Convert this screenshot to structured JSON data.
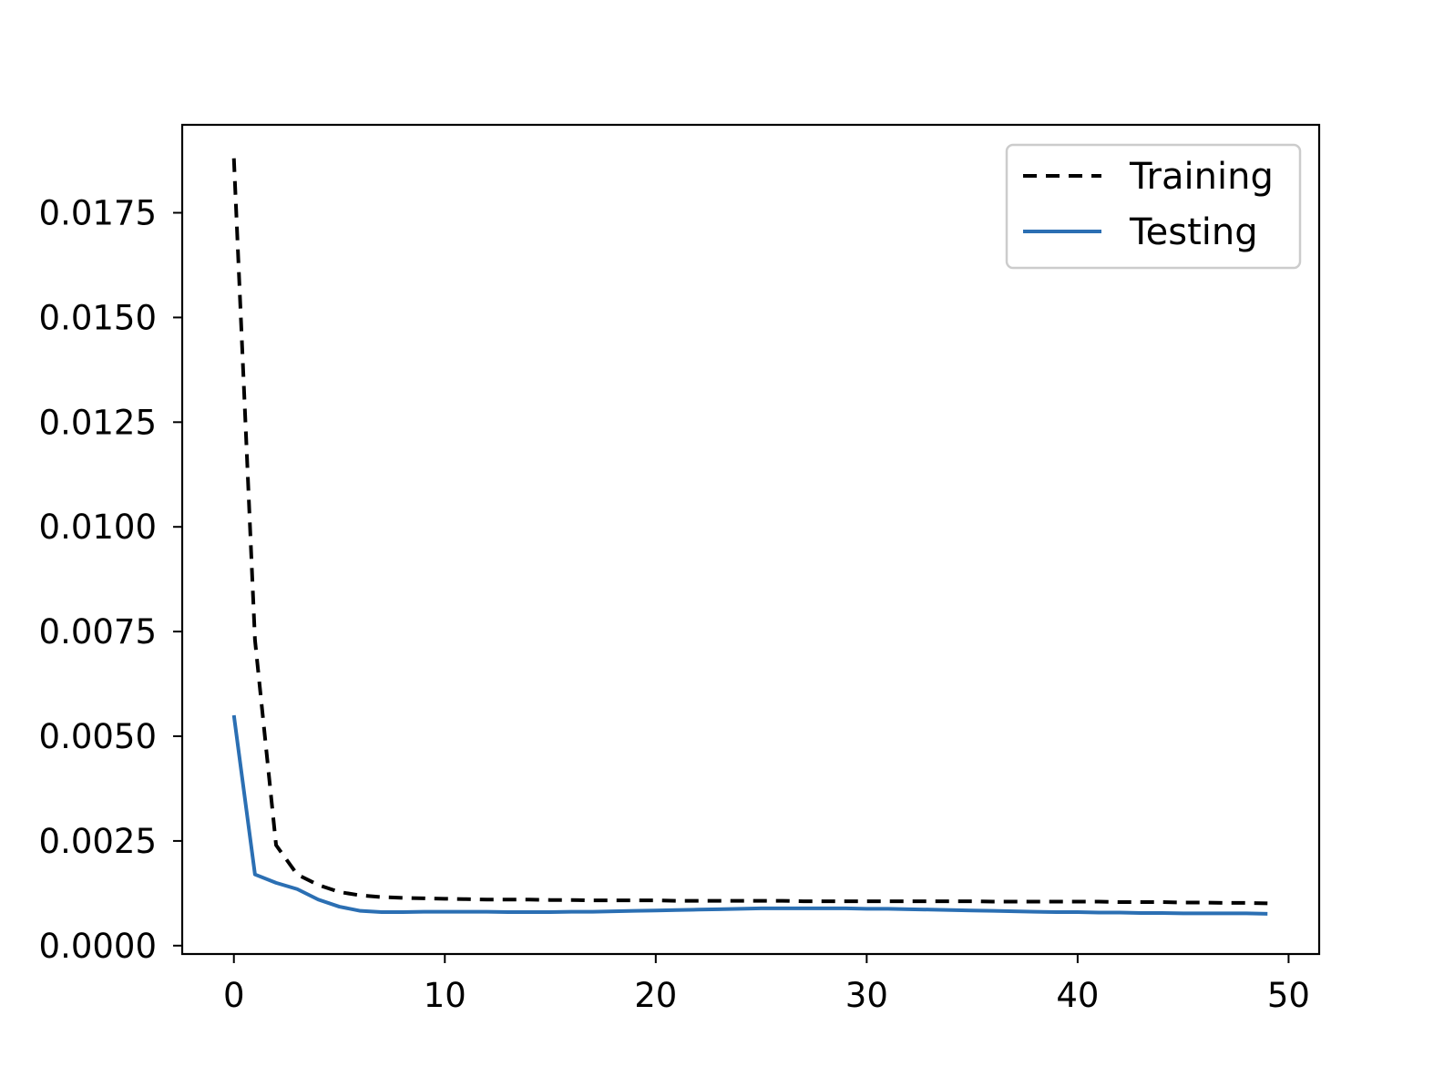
{
  "chart_data": {
    "type": "line",
    "title": "",
    "xlabel": "",
    "ylabel": "",
    "xlim": [
      -2.45,
      51.45
    ],
    "ylim": [
      -0.0002,
      0.0196
    ],
    "xticks": [
      0,
      10,
      20,
      30,
      40,
      50
    ],
    "xtick_labels": [
      "0",
      "10",
      "20",
      "30",
      "40",
      "50"
    ],
    "yticks": [
      0,
      0.0025,
      0.005,
      0.0075,
      0.01,
      0.0125,
      0.015,
      0.0175
    ],
    "ytick_labels": [
      "0.0000",
      "0.0025",
      "0.0050",
      "0.0075",
      "0.0100",
      "0.0125",
      "0.0150",
      "0.0175"
    ],
    "grid": false,
    "legend_position": "top-right",
    "x": [
      0,
      1,
      2,
      3,
      4,
      5,
      6,
      7,
      8,
      9,
      10,
      11,
      12,
      13,
      14,
      15,
      16,
      17,
      18,
      19,
      20,
      21,
      22,
      23,
      24,
      25,
      26,
      27,
      28,
      29,
      30,
      31,
      32,
      33,
      34,
      35,
      36,
      37,
      38,
      39,
      40,
      41,
      42,
      43,
      44,
      45,
      46,
      47,
      48,
      49
    ],
    "series": [
      {
        "name": "Training",
        "color": "#000000",
        "style": "dashed",
        "values": [
          0.0188,
          0.0073,
          0.0024,
          0.0017,
          0.00145,
          0.00128,
          0.0012,
          0.00116,
          0.00114,
          0.00113,
          0.00112,
          0.00111,
          0.0011,
          0.0011,
          0.0011,
          0.00109,
          0.00109,
          0.00108,
          0.00108,
          0.00108,
          0.00108,
          0.00107,
          0.00107,
          0.00107,
          0.00107,
          0.00107,
          0.00107,
          0.00106,
          0.00106,
          0.00106,
          0.00106,
          0.00106,
          0.00106,
          0.00106,
          0.00106,
          0.00106,
          0.00105,
          0.00105,
          0.00105,
          0.00105,
          0.00105,
          0.00105,
          0.00104,
          0.00104,
          0.00104,
          0.00103,
          0.00103,
          0.00102,
          0.00102,
          0.00101
        ]
      },
      {
        "name": "Testing",
        "color": "#2b6fb3",
        "style": "solid",
        "values": [
          0.0055,
          0.0017,
          0.0015,
          0.00135,
          0.0011,
          0.00093,
          0.00083,
          0.0008,
          0.0008,
          0.00081,
          0.00081,
          0.00081,
          0.00081,
          0.0008,
          0.0008,
          0.0008,
          0.00081,
          0.00081,
          0.00082,
          0.00083,
          0.00084,
          0.00085,
          0.00086,
          0.00087,
          0.00088,
          0.00089,
          0.00089,
          0.00089,
          0.00089,
          0.00089,
          0.00088,
          0.00088,
          0.00087,
          0.00086,
          0.00085,
          0.00084,
          0.00083,
          0.00082,
          0.00081,
          0.0008,
          0.0008,
          0.00079,
          0.00079,
          0.00078,
          0.00078,
          0.00077,
          0.00077,
          0.00077,
          0.00077,
          0.00076
        ]
      }
    ]
  }
}
